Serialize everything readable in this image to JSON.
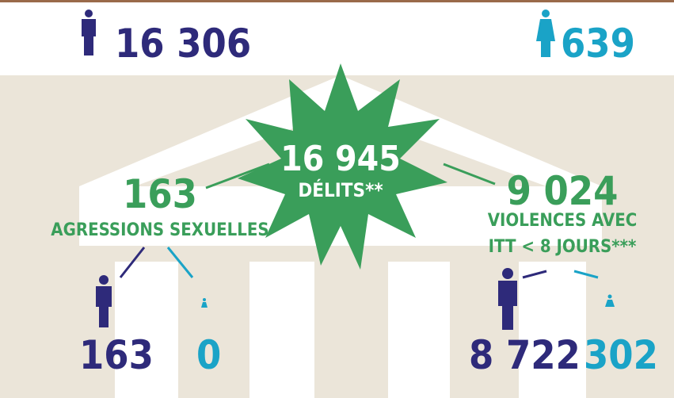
{
  "header": {
    "men_total": "16 306",
    "women_total": "639"
  },
  "center": {
    "total": "16 945",
    "label": "DÉLITS**"
  },
  "categories": [
    {
      "total": "163",
      "label": "AGRESSIONS SEXUELLES",
      "men": "163",
      "women": "0"
    },
    {
      "total": "9 024",
      "label_lines": [
        "VIOLENCES AVEC",
        "ITT < 8 JOURS***"
      ],
      "men": "8 722",
      "women": "302"
    }
  ]
}
